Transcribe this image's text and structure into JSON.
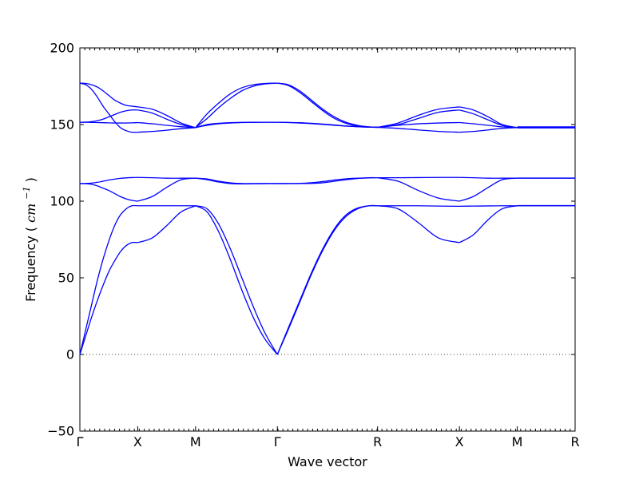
{
  "chart_data": {
    "type": "line",
    "title": "",
    "xlabel": "Wave vector",
    "ylabel": "Frequency",
    "ylabel_unit": "cm",
    "ylabel_unit_exp": "−1",
    "ylim": [
      -50,
      200
    ],
    "yticks": [
      -50,
      0,
      50,
      100,
      150,
      200
    ],
    "ytick_labels": [
      "−50",
      "0",
      "50",
      "100",
      "150",
      "200"
    ],
    "xlim": [
      0,
      8.5
    ],
    "xticks": [
      0,
      1,
      2,
      3.414,
      5.146,
      6.561,
      7.561,
      8.561
    ],
    "xtick_labels": [
      "Γ",
      "X",
      "M",
      "Γ",
      "R",
      "X",
      "M",
      "R"
    ],
    "grid": false,
    "zero_line": true,
    "line_color": "#0000ff",
    "series": [
      {
        "x": [
          0,
          0.1,
          0.2,
          0.3,
          0.4,
          0.5,
          0.6,
          0.7,
          0.8,
          0.9,
          1.0
        ],
        "values": [
          0,
          12,
          24,
          35,
          45,
          54,
          61,
          67,
          71,
          73,
          73
        ]
      },
      {
        "x": [
          0,
          0.1,
          0.2,
          0.3,
          0.4,
          0.5,
          0.6,
          0.7,
          0.8,
          0.9,
          1.0
        ],
        "values": [
          0,
          16,
          32,
          48,
          62,
          74,
          84,
          91,
          95,
          97,
          97
        ]
      },
      {
        "x": [
          0,
          0.1,
          0.2,
          0.3,
          0.4,
          0.5,
          0.6,
          0.7,
          0.8,
          0.9,
          1.0
        ],
        "values": [
          111.5,
          111.4,
          111,
          110,
          108.5,
          107,
          105,
          103,
          101.5,
          100.5,
          100
        ]
      },
      {
        "x": [
          0,
          0.1,
          0.2,
          0.3,
          0.4,
          0.5,
          0.6,
          0.7,
          0.8,
          0.9,
          1.0
        ],
        "values": [
          111.5,
          111.6,
          111.8,
          112.3,
          113,
          113.8,
          114.4,
          114.9,
          115.2,
          115.4,
          115.5
        ]
      },
      {
        "x": [
          0,
          0.1,
          0.2,
          0.3,
          0.4,
          0.5,
          0.6,
          0.7,
          0.8,
          0.9,
          1.0
        ],
        "values": [
          151.5,
          151.5,
          151.4,
          151.3,
          151.2,
          151.1,
          151,
          151,
          151,
          151.1,
          151.3
        ]
      },
      {
        "x": [
          0,
          0.1,
          0.2,
          0.3,
          0.4,
          0.5,
          0.6,
          0.7,
          0.8,
          0.9,
          1.0
        ],
        "values": [
          151.5,
          151.6,
          151.9,
          152.5,
          153.5,
          155,
          156.5,
          158,
          159,
          159.5,
          159.5
        ]
      },
      {
        "x": [
          0,
          0.1,
          0.2,
          0.3,
          0.4,
          0.5,
          0.6,
          0.7,
          0.8,
          0.9,
          1.0
        ],
        "values": [
          177,
          176,
          173,
          168,
          162,
          157,
          152,
          148,
          146,
          145,
          145
        ]
      },
      {
        "x": [
          0,
          0.1,
          0.2,
          0.3,
          0.4,
          0.5,
          0.6,
          0.7,
          0.8,
          0.9,
          1.0
        ],
        "values": [
          177,
          176.8,
          176,
          174.5,
          172,
          169,
          166,
          164,
          162.5,
          162,
          161.5
        ]
      },
      {
        "x": [
          1,
          1.25,
          1.5,
          1.75,
          2
        ],
        "values": [
          73,
          76,
          84,
          93,
          97
        ]
      },
      {
        "x": [
          1,
          1.25,
          1.5,
          1.75,
          2
        ],
        "values": [
          97,
          97,
          97,
          97,
          97
        ]
      },
      {
        "x": [
          1,
          1.25,
          1.5,
          1.75,
          2
        ],
        "values": [
          100,
          103,
          109,
          114,
          115
        ]
      },
      {
        "x": [
          1,
          1.25,
          1.5,
          1.75,
          2
        ],
        "values": [
          115.5,
          115.3,
          115,
          115,
          115
        ]
      },
      {
        "x": [
          1,
          1.25,
          1.5,
          1.75,
          2
        ],
        "values": [
          145,
          145.5,
          146.3,
          147.3,
          148
        ]
      },
      {
        "x": [
          1,
          1.25,
          1.5,
          1.75,
          2
        ],
        "values": [
          151.3,
          150.5,
          149.5,
          148.6,
          148
        ]
      },
      {
        "x": [
          1,
          1.25,
          1.5,
          1.75,
          2
        ],
        "values": [
          159.5,
          157.5,
          153.5,
          150,
          148
        ]
      },
      {
        "x": [
          1,
          1.25,
          1.5,
          1.75,
          2
        ],
        "values": [
          161.5,
          160,
          156,
          151,
          148
        ]
      },
      {
        "x": [
          2,
          2.2,
          2.4,
          2.6,
          2.8,
          3.0,
          3.2,
          3.414
        ],
        "values": [
          97,
          93,
          80,
          62,
          42,
          24,
          10,
          0
        ]
      },
      {
        "x": [
          2,
          2.2,
          2.4,
          2.6,
          2.8,
          3.0,
          3.2,
          3.414
        ],
        "values": [
          97,
          95,
          85,
          69,
          50,
          31,
          14,
          0
        ]
      },
      {
        "x": [
          2,
          2.2,
          2.4,
          2.6,
          2.8,
          3.0,
          3.2,
          3.414
        ],
        "values": [
          115,
          114,
          112.5,
          111.5,
          111.3,
          111.4,
          111.5,
          111.5
        ]
      },
      {
        "x": [
          2,
          2.2,
          2.4,
          2.6,
          2.8,
          3.0,
          3.2,
          3.414
        ],
        "values": [
          115,
          114.5,
          113,
          112,
          111.5,
          111.5,
          111.5,
          111.5
        ]
      },
      {
        "x": [
          2,
          2.2,
          2.4,
          2.6,
          2.8,
          3.0,
          3.2,
          3.414
        ],
        "values": [
          148,
          149.5,
          150.5,
          151,
          151.3,
          151.4,
          151.5,
          151.5
        ]
      },
      {
        "x": [
          2,
          2.2,
          2.4,
          2.6,
          2.8,
          3.0,
          3.2,
          3.414
        ],
        "values": [
          148,
          150,
          150.8,
          151.2,
          151.4,
          151.5,
          151.5,
          151.5
        ]
      },
      {
        "x": [
          2,
          2.2,
          2.4,
          2.6,
          2.8,
          3.0,
          3.2,
          3.414
        ],
        "values": [
          148,
          154,
          161,
          167,
          172,
          175,
          176.5,
          177
        ]
      },
      {
        "x": [
          2,
          2.2,
          2.4,
          2.6,
          2.8,
          3.0,
          3.2,
          3.414
        ],
        "values": [
          148,
          157,
          164,
          170,
          174,
          176,
          176.8,
          177
        ]
      },
      {
        "x": [
          3.414,
          3.6,
          3.8,
          4.0,
          4.2,
          4.4,
          4.6,
          4.8,
          5.0,
          5.146
        ],
        "values": [
          0,
          16,
          34,
          52,
          68,
          81,
          90,
          95,
          97,
          97
        ]
      },
      {
        "x": [
          3.414,
          3.6,
          3.8,
          4.0,
          4.2,
          4.4,
          4.6,
          4.8,
          5.0,
          5.146
        ],
        "values": [
          0,
          17,
          35,
          53,
          69,
          82,
          91,
          95.5,
          97,
          97
        ]
      },
      {
        "x": [
          3.414,
          3.6,
          3.8,
          4.0,
          4.2,
          4.4,
          4.6,
          4.8,
          5.0,
          5.146
        ],
        "values": [
          111.5,
          111.5,
          111.5,
          111.6,
          112,
          113,
          114,
          114.8,
          115.2,
          115.3
        ]
      },
      {
        "x": [
          3.414,
          3.6,
          3.8,
          4.0,
          4.2,
          4.4,
          4.6,
          4.8,
          5.0,
          5.146
        ],
        "values": [
          111.5,
          111.5,
          111.6,
          112,
          112.8,
          113.8,
          114.6,
          115,
          115.3,
          115.3
        ]
      },
      {
        "x": [
          3.414,
          3.6,
          3.8,
          4.0,
          4.2,
          4.4,
          4.6,
          4.8,
          5.0,
          5.146
        ],
        "values": [
          151.5,
          151.4,
          151.2,
          150.8,
          150.3,
          149.7,
          149.1,
          148.6,
          148.3,
          148.2
        ]
      },
      {
        "x": [
          3.414,
          3.6,
          3.8,
          4.0,
          4.2,
          4.4,
          4.6,
          4.8,
          5.0,
          5.146
        ],
        "values": [
          151.5,
          151.3,
          151,
          150.6,
          150.1,
          149.5,
          149,
          148.6,
          148.3,
          148.2
        ]
      },
      {
        "x": [
          3.414,
          3.6,
          3.8,
          4.0,
          4.2,
          4.4,
          4.6,
          4.8,
          5.0,
          5.146
        ],
        "values": [
          177,
          176,
          172,
          166,
          160,
          155,
          151.5,
          149.5,
          148.5,
          148.2
        ]
      },
      {
        "x": [
          3.414,
          3.6,
          3.8,
          4.0,
          4.2,
          4.4,
          4.6,
          4.8,
          5.0,
          5.146
        ],
        "values": [
          177,
          175.5,
          171,
          165,
          159,
          154,
          150.8,
          149,
          148.4,
          148.2
        ]
      },
      {
        "x": [
          5.146,
          5.5,
          5.85,
          6.2,
          6.561
        ],
        "values": [
          97,
          95,
          86,
          76,
          73
        ]
      },
      {
        "x": [
          5.146,
          5.5,
          5.85,
          6.2,
          6.561
        ],
        "values": [
          97,
          97,
          97,
          96.8,
          96.7
        ]
      },
      {
        "x": [
          5.146,
          5.5,
          5.85,
          6.2,
          6.561
        ],
        "values": [
          115.3,
          113,
          107,
          102,
          100
        ]
      },
      {
        "x": [
          5.146,
          5.5,
          5.85,
          6.2,
          6.561
        ],
        "values": [
          115.3,
          115.3,
          115.4,
          115.5,
          115.5
        ]
      },
      {
        "x": [
          5.146,
          5.5,
          5.85,
          6.2,
          6.561
        ],
        "values": [
          148.2,
          147.5,
          146.5,
          145.5,
          145
        ]
      },
      {
        "x": [
          5.146,
          5.5,
          5.85,
          6.2,
          6.561
        ],
        "values": [
          148.2,
          149.5,
          150.5,
          151,
          151.3
        ]
      },
      {
        "x": [
          5.146,
          5.5,
          5.85,
          6.2,
          6.561
        ],
        "values": [
          148.2,
          150,
          154,
          158,
          159.5
        ]
      },
      {
        "x": [
          5.146,
          5.5,
          5.85,
          6.2,
          6.561
        ],
        "values": [
          148.2,
          151,
          156,
          160,
          161.5
        ]
      },
      {
        "x": [
          6.561,
          6.8,
          7.06,
          7.3,
          7.561
        ],
        "values": [
          73,
          78,
          88,
          95,
          97
        ]
      },
      {
        "x": [
          6.561,
          6.8,
          7.06,
          7.3,
          7.561
        ],
        "values": [
          96.7,
          96.8,
          96.9,
          97,
          97
        ]
      },
      {
        "x": [
          6.561,
          6.8,
          7.06,
          7.3,
          7.561
        ],
        "values": [
          100,
          103,
          109,
          114,
          115
        ]
      },
      {
        "x": [
          6.561,
          6.8,
          7.06,
          7.3,
          7.561
        ],
        "values": [
          115.5,
          115.3,
          115,
          115,
          115
        ]
      },
      {
        "x": [
          6.561,
          6.8,
          7.06,
          7.3,
          7.561
        ],
        "values": [
          145,
          145.5,
          146.5,
          147.5,
          148
        ]
      },
      {
        "x": [
          6.561,
          6.8,
          7.06,
          7.3,
          7.561
        ],
        "values": [
          151.3,
          150.5,
          149.5,
          148.5,
          148
        ]
      },
      {
        "x": [
          6.561,
          6.8,
          7.06,
          7.3,
          7.561
        ],
        "values": [
          159.5,
          157,
          153,
          149.5,
          148
        ]
      },
      {
        "x": [
          6.561,
          6.8,
          7.06,
          7.3,
          7.561
        ],
        "values": [
          161.5,
          159.5,
          155,
          150,
          148
        ]
      },
      {
        "x": [
          7.561,
          8.561
        ],
        "values": [
          97,
          97
        ]
      },
      {
        "x": [
          7.561,
          8.561
        ],
        "values": [
          97.1,
          97.1
        ]
      },
      {
        "x": [
          7.561,
          8.561
        ],
        "values": [
          115,
          115
        ]
      },
      {
        "x": [
          7.561,
          8.561
        ],
        "values": [
          115.1,
          115.1
        ]
      },
      {
        "x": [
          7.561,
          8.561
        ],
        "values": [
          148,
          148
        ]
      },
      {
        "x": [
          7.561,
          8.561
        ],
        "values": [
          148.3,
          148.3
        ]
      },
      {
        "x": [
          7.561,
          8.561
        ],
        "values": [
          147.8,
          147.8
        ]
      },
      {
        "x": [
          7.561,
          8.561
        ],
        "values": [
          148.5,
          148.5
        ]
      }
    ]
  }
}
